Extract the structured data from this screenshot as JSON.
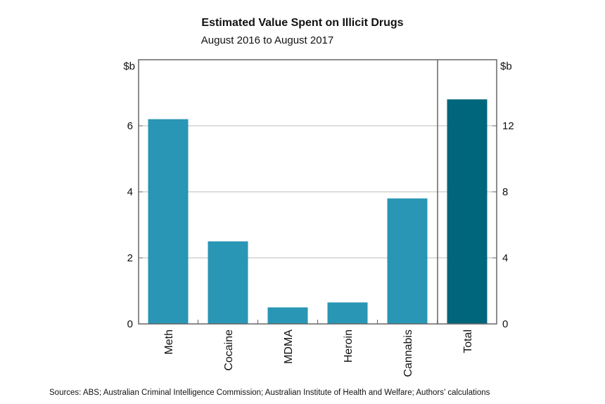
{
  "chart_data": {
    "type": "bar",
    "title": "Estimated Value Spent on Illicit Drugs",
    "subtitle": "August 2016 to August 2017",
    "left_axis": {
      "unit": "$b",
      "range": [
        0,
        8
      ],
      "ticks": [
        0,
        2,
        4,
        6
      ]
    },
    "right_axis": {
      "unit": "$b",
      "range": [
        0,
        16
      ],
      "ticks": [
        0,
        4,
        8,
        12
      ]
    },
    "grid": true,
    "categories": [
      "Meth",
      "Cocaine",
      "MDMA",
      "Heroin",
      "Cannabis",
      "Total"
    ],
    "values": [
      6.2,
      2.5,
      0.5,
      0.65,
      3.8,
      13.6
    ],
    "axis_used": [
      "left",
      "left",
      "left",
      "left",
      "left",
      "right"
    ],
    "colors": {
      "drug": "#2896b4",
      "total": "#00667c"
    },
    "source": "Sources:  ABS; Australian Criminal Intelligence Commission; Australian Institute of Health and Welfare; Authors’ calculations"
  }
}
